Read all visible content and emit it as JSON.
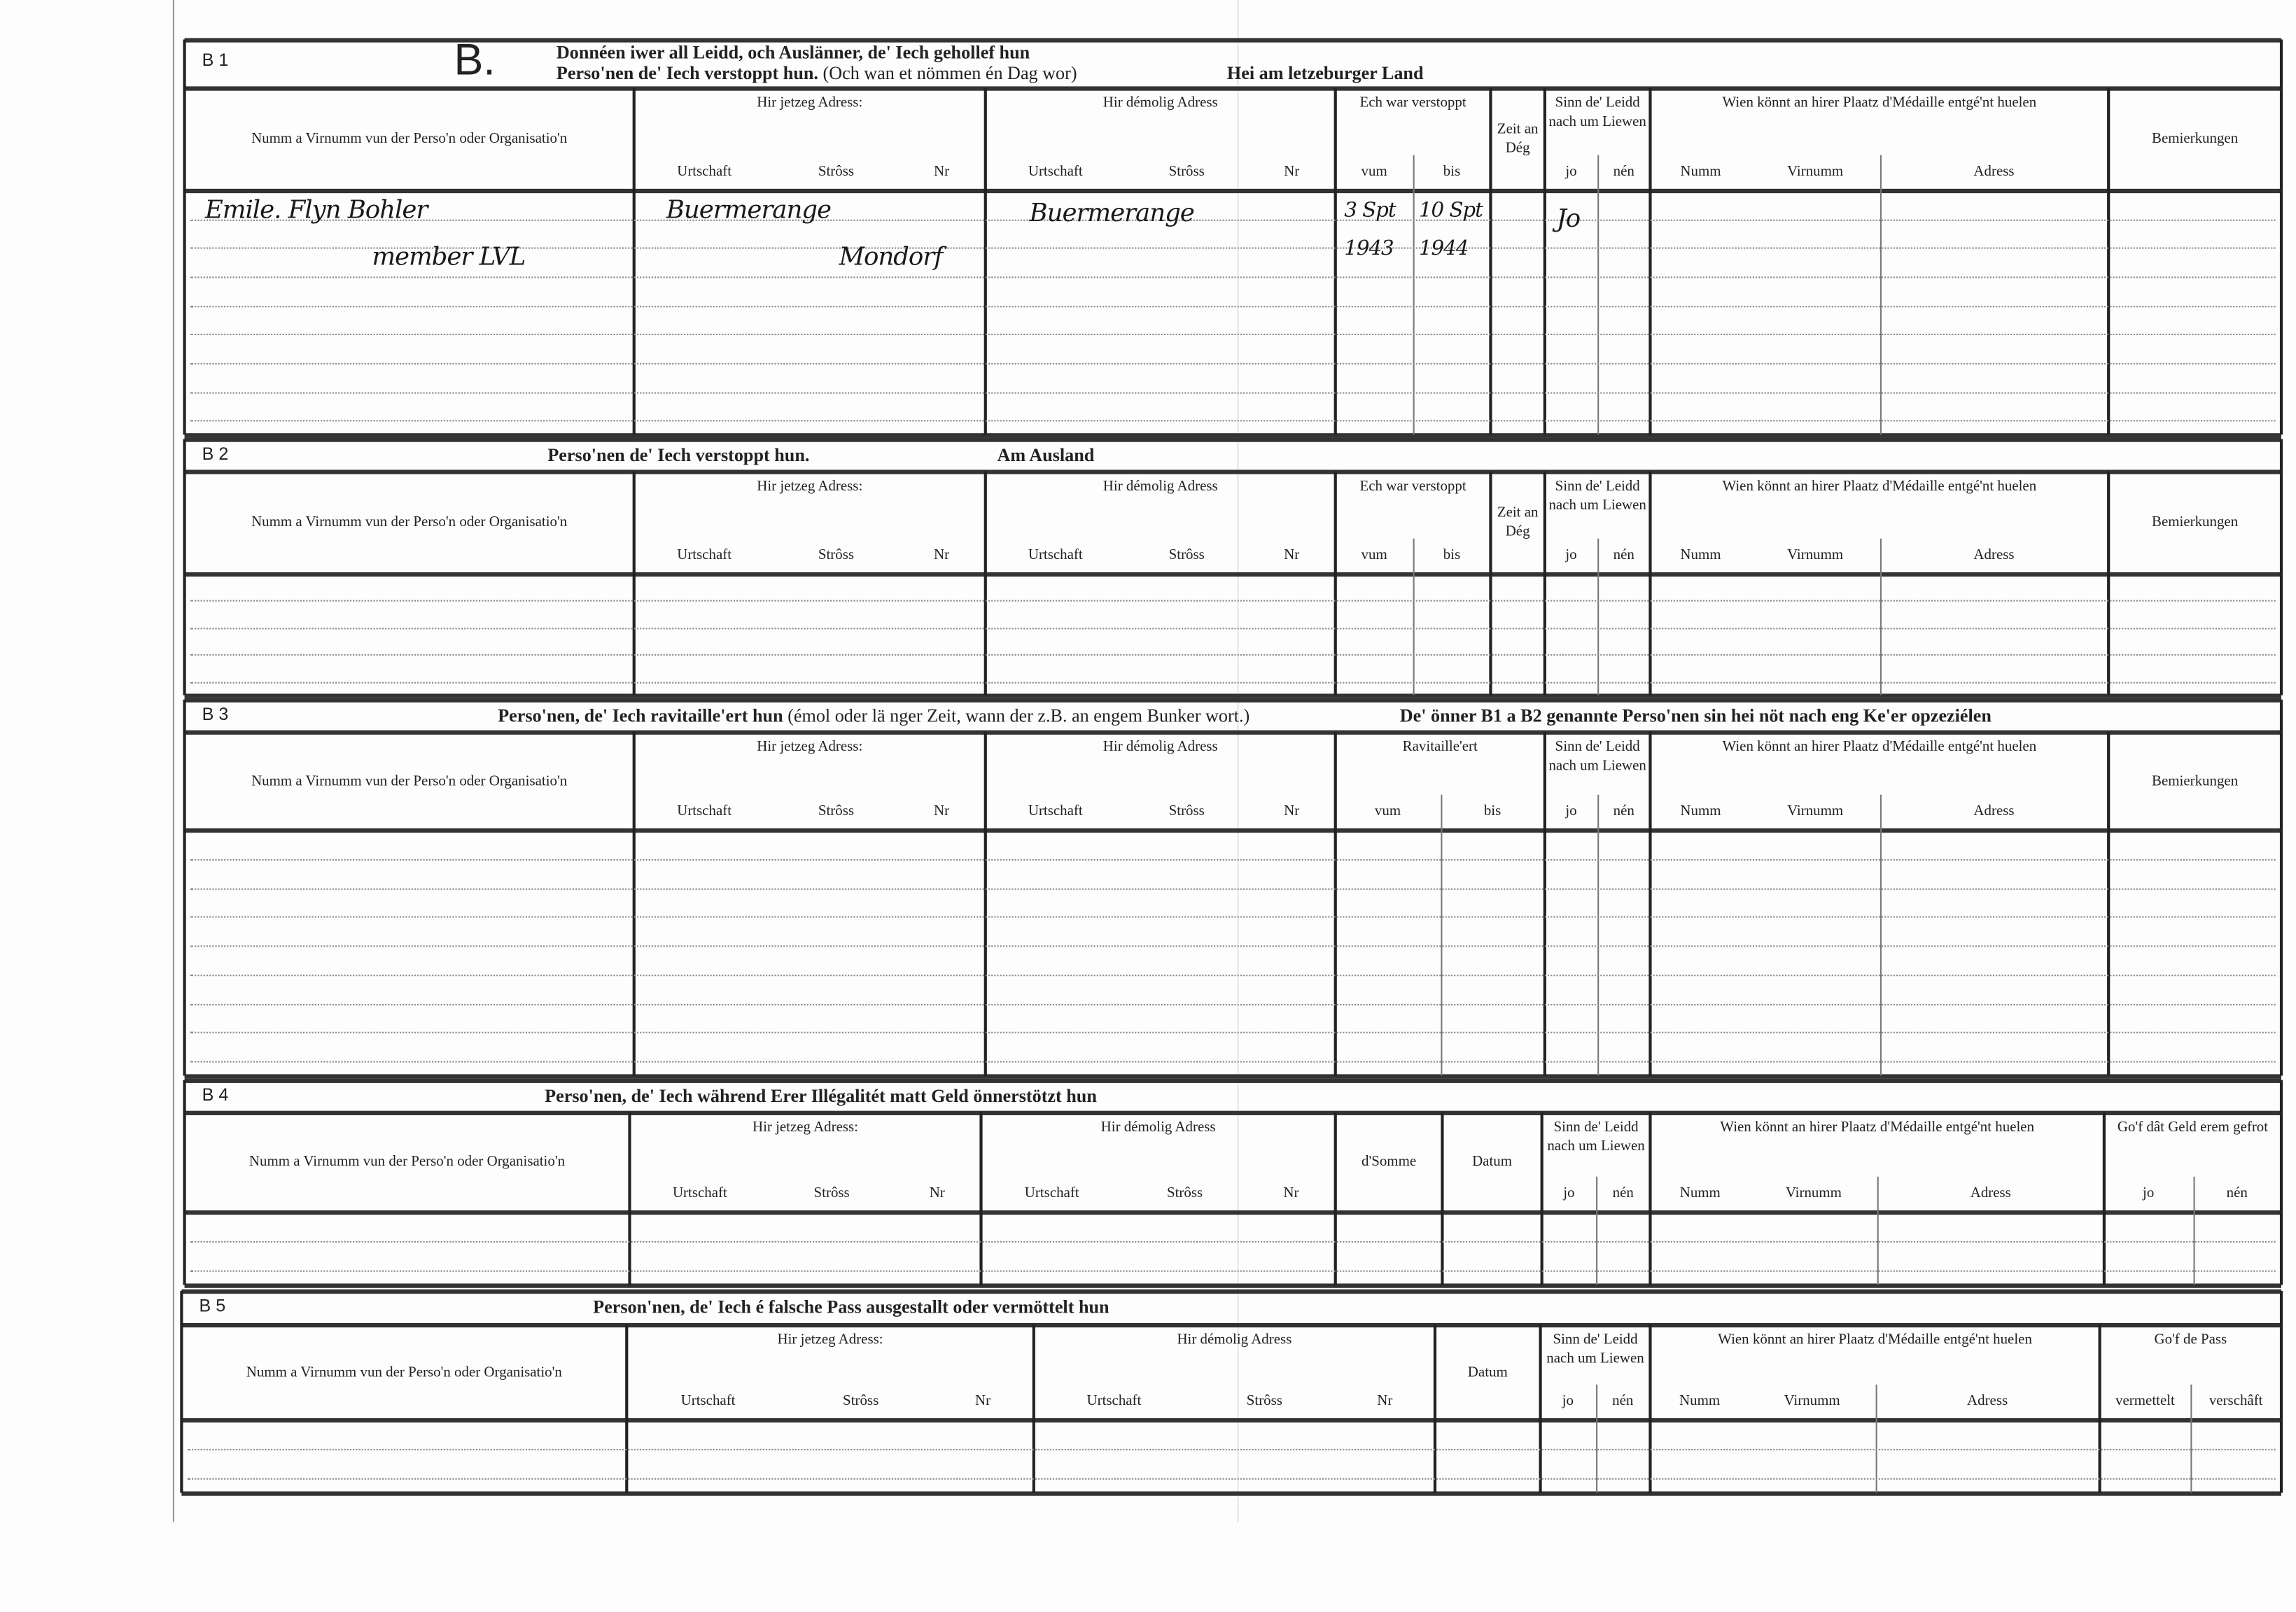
{
  "sections": [
    {
      "code": "B 1",
      "letter": "B.",
      "title_lines": [
        "Donnéen iwer all Leidd, och Auslänner, de' Iech gehollef hun",
        "Perso'nen de' Iech verstoppt hun."
      ],
      "title_note": "(Och wan et nömmen én Dag wor)",
      "title_right": "Hei am letzeburger Land",
      "columns": [
        {
          "label": "Numm a Virnumm vun der Perso'n oder Organisatio'n"
        },
        {
          "label": "Hir jetzeg Adress:",
          "subs": [
            "Urtschaft",
            "Strôss",
            "Nr"
          ]
        },
        {
          "label": "Hir démolig Adress",
          "subs": [
            "Urtschaft",
            "Strôss",
            "Nr"
          ]
        },
        {
          "label": "Ech war verstoppt",
          "subs": [
            "vum",
            "bis"
          ]
        },
        {
          "label": "Zeit an Dég"
        },
        {
          "label": "Sinn de' Leidd nach um Liewen",
          "subs": [
            "jo",
            "nén"
          ]
        },
        {
          "label": "Wien könnt an hirer Plaatz d'Médaille entgé'nt huelen",
          "subs": [
            "Numm",
            "Virnumm",
            "Adress"
          ]
        },
        {
          "label": "Bemierkungen"
        }
      ],
      "entries": [
        {
          "field": "name",
          "text": "Emile. Flyn Bohler"
        },
        {
          "field": "name",
          "text": "member LVL"
        },
        {
          "field": "current-locality",
          "text": "Buermerange"
        },
        {
          "field": "current-locality",
          "text": "Mondorf"
        },
        {
          "field": "former-locality",
          "text": "Buermerange"
        },
        {
          "field": "hidden-from",
          "text": "3 Spt"
        },
        {
          "field": "hidden-from",
          "text": "1943"
        },
        {
          "field": "hidden-until",
          "text": "10 Spt"
        },
        {
          "field": "hidden-until",
          "text": "1944"
        },
        {
          "field": "alive-yes",
          "text": "Jo"
        }
      ]
    },
    {
      "code": "B 2",
      "title_lines": [
        "Perso'nen de' Iech verstoppt hun."
      ],
      "title_right": "Am Ausland",
      "columns": [
        {
          "label": "Numm a Virnumm vun der Perso'n oder Organisatio'n"
        },
        {
          "label": "Hir jetzeg Adress:",
          "subs": [
            "Urtschaft",
            "Strôss",
            "Nr"
          ]
        },
        {
          "label": "Hir démolig Adress",
          "subs": [
            "Urtschaft",
            "Strôss",
            "Nr"
          ]
        },
        {
          "label": "Ech war verstoppt",
          "subs": [
            "vum",
            "bis"
          ]
        },
        {
          "label": "Zeit an Dég"
        },
        {
          "label": "Sinn de' Leidd nach um Liewen",
          "subs": [
            "jo",
            "nén"
          ]
        },
        {
          "label": "Wien könnt an hirer Plaatz d'Médaille entgé'nt huelen",
          "subs": [
            "Numm",
            "Virnumm",
            "Adress"
          ]
        },
        {
          "label": "Bemierkungen"
        }
      ]
    },
    {
      "code": "B 3",
      "title_lines": [
        "Perso'nen, de' Iech ravitaille'ert hun"
      ],
      "title_note": "(émol oder lä nger Zeit, wann der z.B. an engem Bunker wort.)",
      "title_right": "De' önner B1 a B2 genannte Perso'nen sin hei nöt nach eng Ke'er opzeziélen",
      "columns": [
        {
          "label": "Numm a Virnumm vun der Perso'n oder Organisatio'n"
        },
        {
          "label": "Hir jetzeg Adress:",
          "subs": [
            "Urtschaft",
            "Strôss",
            "Nr"
          ]
        },
        {
          "label": "Hir démolig Adress",
          "subs": [
            "Urtschaft",
            "Strôss",
            "Nr"
          ]
        },
        {
          "label": "Ravitaille'ert",
          "subs": [
            "vum",
            "bis"
          ]
        },
        {
          "label": "Sinn de' Leidd nach um Liewen",
          "subs": [
            "jo",
            "nén"
          ]
        },
        {
          "label": "Wien könnt an hirer Plaatz d'Médaille entgé'nt huelen",
          "subs": [
            "Numm",
            "Virnumm",
            "Adress"
          ]
        },
        {
          "label": "Bemierkungen"
        }
      ]
    },
    {
      "code": "B 4",
      "title_lines": [
        "Perso'nen, de' Iech während Erer Illégalitét matt Geld önnerstötzt hun"
      ],
      "columns": [
        {
          "label": "Numm a Virnumm vun der Perso'n oder Organisatio'n"
        },
        {
          "label": "Hir jetzeg Adress:",
          "subs": [
            "Urtschaft",
            "Strôss",
            "Nr"
          ]
        },
        {
          "label": "Hir démolig Adress",
          "subs": [
            "Urtschaft",
            "Strôss",
            "Nr"
          ]
        },
        {
          "label": "d'Somme"
        },
        {
          "label": "Datum"
        },
        {
          "label": "Sinn de' Leidd nach um Liewen",
          "subs": [
            "jo",
            "nén"
          ]
        },
        {
          "label": "Wien könnt an hirer Plaatz d'Médaille entgé'nt huelen",
          "subs": [
            "Numm",
            "Virnumm",
            "Adress"
          ]
        },
        {
          "label": "Go'f dât Geld erem gefrot",
          "subs": [
            "jo",
            "nén"
          ]
        }
      ]
    },
    {
      "code": "B 5",
      "title_lines": [
        "Person'nen, de' Iech é falsche Pass ausgestallt oder vermöttelt hun"
      ],
      "columns": [
        {
          "label": "Numm a Virnumm vun der Perso'n oder Organisatio'n"
        },
        {
          "label": "Hir jetzeg Adress:",
          "subs": [
            "Urtschaft",
            "Strôss",
            "Nr"
          ]
        },
        {
          "label": "Hir démolig Adress",
          "subs": [
            "Urtschaft",
            "Strôss",
            "Nr"
          ]
        },
        {
          "label": "Datum"
        },
        {
          "label": "Sinn de' Leidd nach um Liewen",
          "subs": [
            "jo",
            "nén"
          ]
        },
        {
          "label": "Wien könnt an hirer Plaatz d'Médaille entgé'nt huelen",
          "subs": [
            "Numm",
            "Virnumm",
            "Adress"
          ]
        },
        {
          "label": "Go'f de Pass",
          "subs": [
            "vermettelt",
            "verschâft"
          ]
        }
      ]
    }
  ]
}
